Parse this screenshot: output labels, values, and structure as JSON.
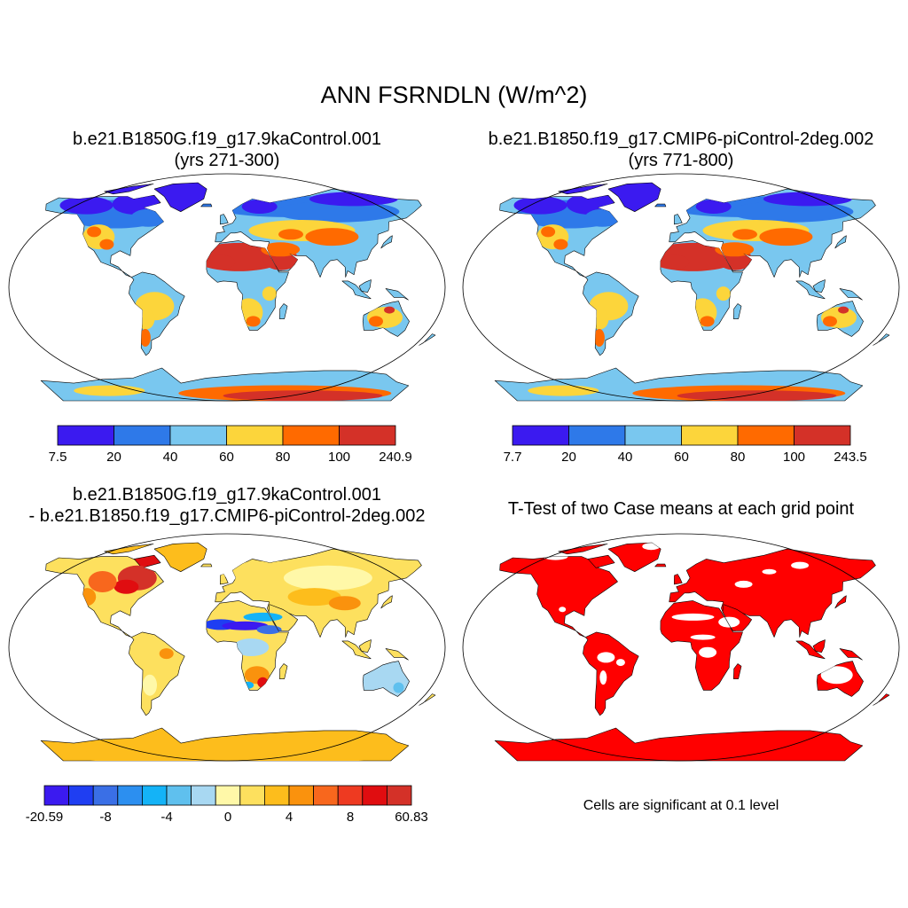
{
  "main_title": "ANN FSRNDLN (W/m^2)",
  "panels": [
    {
      "id": "case1",
      "title_line1": "b.e21.B1850G.f19_g17.9kaControl.001",
      "title_line2": "(yrs 271-300)",
      "colorbar": {
        "colors": [
          "#3b1af0",
          "#2e79e9",
          "#79c7ef",
          "#fcd53b",
          "#ff6a00",
          "#d43128"
        ],
        "tick_labels": [
          "7.5",
          "20",
          "40",
          "60",
          "80",
          "100",
          "240.9"
        ]
      }
    },
    {
      "id": "case2",
      "title_line1": "b.e21.B1850.f19_g17.CMIP6-piControl-2deg.002",
      "title_line2": "(yrs 771-800)",
      "colorbar": {
        "colors": [
          "#3b1af0",
          "#2e79e9",
          "#79c7ef",
          "#fcd53b",
          "#ff6a00",
          "#d43128"
        ],
        "tick_labels": [
          "7.7",
          "20",
          "40",
          "60",
          "80",
          "100",
          "243.5"
        ]
      }
    },
    {
      "id": "difference",
      "title_line1": "b.e21.B1850G.f19_g17.9kaControl.001",
      "title_line2": "- b.e21.B1850.f19_g17.CMIP6-piControl-2deg.002",
      "colorbar": {
        "colors": [
          "#3b1af0",
          "#1f3ef2",
          "#3a6fe6",
          "#2c8ff0",
          "#14b3f7",
          "#5fc0ee",
          "#a8d8f2",
          "#fff8a8",
          "#fde05e",
          "#fdbd1c",
          "#fa920d",
          "#f8671d",
          "#ee3a21",
          "#e00d10",
          "#d43128"
        ],
        "tick_labels": [
          "-20.59",
          "-8",
          "-4",
          "0",
          "4",
          "8",
          "60.83"
        ]
      }
    },
    {
      "id": "ttest",
      "title_line1": "T-Test of two Case means at each grid point",
      "note": "Cells are significant at 0.1 level",
      "fill_color": "#ff0000"
    }
  ],
  "chart_data": [
    {
      "type": "heatmap",
      "projection": "Robinson",
      "title": "b.e21.B1850G.f19_g17.9kaControl.001 (yrs 271-300)",
      "colorbar_ticks": [
        7.5,
        20,
        40,
        60,
        80,
        100,
        240.9
      ],
      "regions": [
        {
          "name": "Sahara / Arabia",
          "level": "100-240.9"
        },
        {
          "name": "Antarctic interior",
          "level": "80-240.9"
        },
        {
          "name": "Central Asia",
          "level": "60-100"
        },
        {
          "name": "Australia interior",
          "level": "60-100"
        },
        {
          "name": "Southern Africa",
          "level": "60-100"
        },
        {
          "name": "Western North America",
          "level": "60-100"
        },
        {
          "name": "South America",
          "level": "40-80"
        },
        {
          "name": "Boreal high latitudes",
          "level": "7.5-40"
        }
      ]
    },
    {
      "type": "heatmap",
      "projection": "Robinson",
      "title": "b.e21.B1850.f19_g17.CMIP6-piControl-2deg.002 (yrs 771-800)",
      "colorbar_ticks": [
        7.7,
        20,
        40,
        60,
        80,
        100,
        243.5
      ],
      "regions": [
        {
          "name": "Sahara / Arabia",
          "level": "100-243.5"
        },
        {
          "name": "Antarctic interior",
          "level": "80-243.5"
        },
        {
          "name": "Central Asia",
          "level": "60-100"
        },
        {
          "name": "Australia interior",
          "level": "60-100"
        },
        {
          "name": "Southern Africa",
          "level": "60-100"
        },
        {
          "name": "Western North America",
          "level": "60-100"
        },
        {
          "name": "South America",
          "level": "40-80"
        },
        {
          "name": "Boreal high latitudes",
          "level": "7.7-40"
        }
      ]
    },
    {
      "type": "heatmap",
      "projection": "Robinson",
      "title": "b.e21.B1850G.f19_g17.9kaControl.001 - b.e21.B1850.f19_g17.CMIP6-piControl-2deg.002",
      "colorbar_ticks": [
        -20.59,
        -8,
        -4,
        0,
        4,
        8,
        60.83
      ],
      "regions": [
        {
          "name": "Eastern Canada / Hudson Bay",
          "level": "8-60.83"
        },
        {
          "name": "Sahara / Sahel band",
          "level": "-20.59 to -8"
        },
        {
          "name": "Eurasia",
          "level": "0-8"
        },
        {
          "name": "Antarctica",
          "level": "0-4"
        },
        {
          "name": "Southern Africa",
          "level": "4-8"
        },
        {
          "name": "Australia",
          "level": "-4-0"
        }
      ]
    },
    {
      "type": "heatmap",
      "projection": "Robinson",
      "title": "T-Test of two Case means at each grid point",
      "significance_level": 0.1,
      "regions": [
        {
          "name": "North America",
          "significant": true
        },
        {
          "name": "Eurasia",
          "significant": true
        },
        {
          "name": "Africa",
          "significant": true
        },
        {
          "name": "South America",
          "significant": true
        },
        {
          "name": "Antarctica",
          "significant": true
        },
        {
          "name": "Australia",
          "significant": "partial"
        }
      ]
    }
  ]
}
